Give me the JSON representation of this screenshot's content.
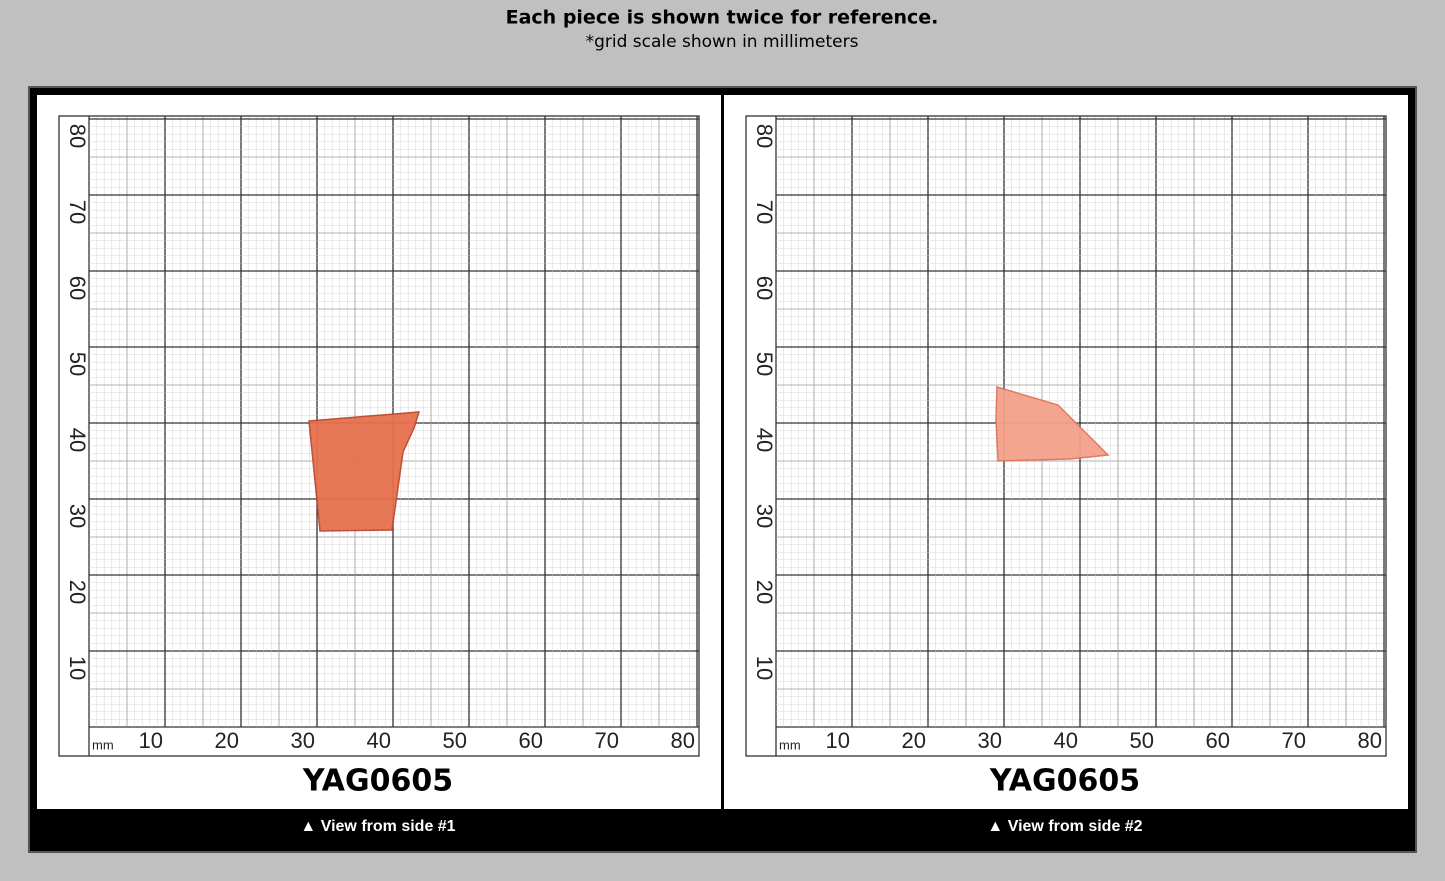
{
  "header": {
    "title": "Each piece is shown twice for reference.",
    "subtitle": "*grid scale shown in millimeters"
  },
  "panels": [
    {
      "grid": {
        "unit": "mm",
        "x_labels": [
          "10",
          "20",
          "30",
          "40",
          "50",
          "60",
          "70",
          "80"
        ],
        "y_labels": [
          "10",
          "20",
          "30",
          "40",
          "50",
          "60",
          "70",
          "80"
        ]
      },
      "label": "YAG0605",
      "caption": "▲ View from side #1"
    },
    {
      "grid": {
        "unit": "mm",
        "x_labels": [
          "10",
          "20",
          "30",
          "40",
          "50",
          "60",
          "70",
          "80"
        ],
        "y_labels": [
          "10",
          "20",
          "30",
          "40",
          "50",
          "60",
          "70",
          "80"
        ]
      },
      "label": "YAG0605",
      "caption": "▲ View from side #2"
    }
  ]
}
